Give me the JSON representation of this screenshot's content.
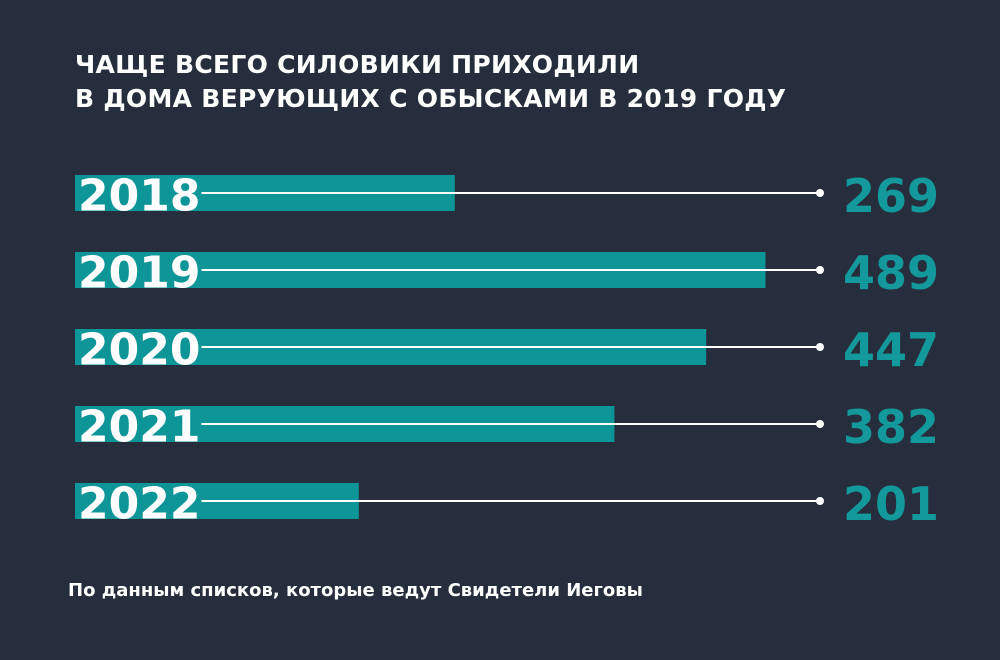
{
  "header": {
    "title_line1": "ЧАЩЕ ВСЕГО СИЛОВИКИ ПРИХОДИЛИ",
    "title_line2": "В ДОМА ВЕРУЮЩИХ С ОБЫСКАМИ В 2019 ГОДУ"
  },
  "footer": {
    "source": "По данным списков, которые ведут Свидетели Иеговы"
  },
  "colors": {
    "background": "#262e3d",
    "bar": "#0d9597",
    "value_text": "#13999b",
    "line": "#ffffff"
  },
  "chart_data": {
    "type": "bar",
    "orientation": "horizontal",
    "title": "ЧАЩЕ ВСЕГО СИЛОВИКИ ПРИХОДИЛИ В ДОМА ВЕРУЮЩИХ С ОБЫСКАМИ В 2019 ГОДУ",
    "categories": [
      "2018",
      "2019",
      "2020",
      "2021",
      "2022"
    ],
    "values": [
      269,
      489,
      447,
      382,
      201
    ],
    "value_labels": [
      "269",
      "489",
      "447",
      "382",
      "201"
    ],
    "xlabel": "",
    "ylabel": "",
    "grid": false
  }
}
